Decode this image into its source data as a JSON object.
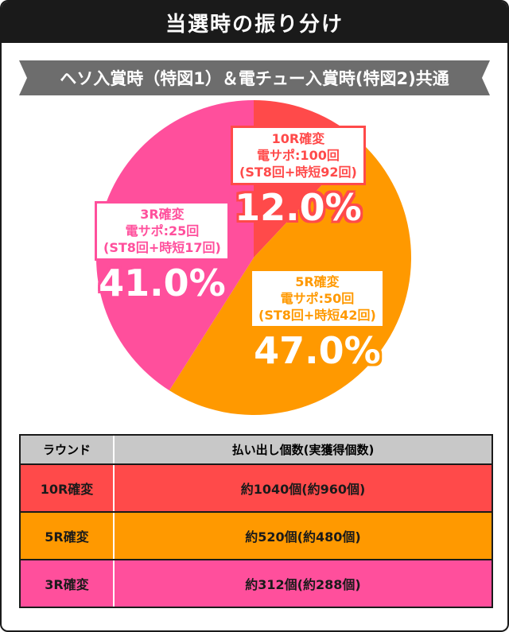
{
  "header": {
    "title": "当選時の振り分け"
  },
  "subtitle": "ヘソ入賞時（特図1）＆電チュー入賞時(特図2)共通",
  "chart_data": {
    "type": "pie",
    "slices": [
      {
        "label": "10R確変",
        "sub": "電サポ:100回",
        "detail": "(ST8回+時短92回)",
        "value": 12.0,
        "pct_label": "12.0%",
        "color": "#ff4a4a"
      },
      {
        "label": "5R確変",
        "sub": "電サポ:50回",
        "detail": "(ST8回+時短42回)",
        "value": 47.0,
        "pct_label": "47.0%",
        "color": "#ff9900"
      },
      {
        "label": "3R確変",
        "sub": "電サポ:25回",
        "detail": "(ST8回+時短17回)",
        "value": 41.0,
        "pct_label": "41.0%",
        "color": "#ff4f9c"
      }
    ]
  },
  "table": {
    "headers": [
      "ラウンド",
      "払い出し個数(実獲得個数)"
    ],
    "rows": [
      {
        "round": "10R確変",
        "payout": "約1040個(約960個)",
        "color": "#ff4a4a"
      },
      {
        "round": "5R確変",
        "payout": "約520個(約480個)",
        "color": "#ff9900"
      },
      {
        "round": "3R確変",
        "payout": "約312個(約288個)",
        "color": "#ff4f9c"
      }
    ]
  }
}
